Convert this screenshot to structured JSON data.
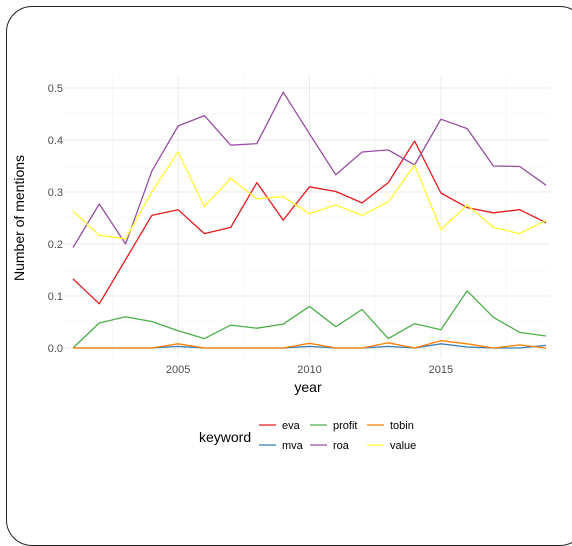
{
  "chart_data": {
    "type": "line",
    "title": "",
    "xlabel": "year",
    "ylabel": "Number of mentions",
    "xlim": [
      2001,
      2019
    ],
    "ylim": [
      0,
      0.5
    ],
    "x_ticks": [
      "2005",
      "2010",
      "2015"
    ],
    "y_ticks": [
      "0.0",
      "0.1",
      "0.2",
      "0.3",
      "0.4",
      "0.5"
    ],
    "grid": true,
    "legend_title": "keyword",
    "legend_position": "bottom",
    "x": [
      2001,
      2002,
      2003,
      2004,
      2005,
      2006,
      2007,
      2008,
      2009,
      2010,
      2011,
      2012,
      2013,
      2014,
      2015,
      2016,
      2017,
      2018,
      2019
    ],
    "series": [
      {
        "name": "eva",
        "color": "#E41A1C",
        "values": [
          0.133,
          0.085,
          0.17,
          0.255,
          0.266,
          0.22,
          0.232,
          0.318,
          0.246,
          0.31,
          0.301,
          0.279,
          0.318,
          0.398,
          0.298,
          0.27,
          0.26,
          0.266,
          0.241
        ]
      },
      {
        "name": "mva",
        "color": "#377EB8",
        "values": [
          0.0,
          0.0,
          0.0,
          0.0,
          0.003,
          0.0,
          0.0,
          0.0,
          0.0,
          0.003,
          0.0,
          0.0,
          0.003,
          0.0,
          0.008,
          0.002,
          0.0,
          0.0,
          0.005
        ]
      },
      {
        "name": "profit",
        "color": "#4DAF4A",
        "values": [
          0.0,
          0.048,
          0.06,
          0.051,
          0.033,
          0.018,
          0.044,
          0.038,
          0.046,
          0.08,
          0.041,
          0.074,
          0.018,
          0.047,
          0.035,
          0.11,
          0.059,
          0.03,
          0.023
        ]
      },
      {
        "name": "roa",
        "color": "#984EA3",
        "values": [
          0.193,
          0.277,
          0.2,
          0.34,
          0.427,
          0.447,
          0.39,
          0.393,
          0.492,
          0.412,
          0.333,
          0.377,
          0.381,
          0.352,
          0.44,
          0.422,
          0.35,
          0.349,
          0.313
        ]
      },
      {
        "name": "tobin",
        "color": "#FF7F00",
        "values": [
          0.0,
          0.0,
          0.0,
          0.0,
          0.008,
          0.0,
          0.0,
          0.0,
          0.0,
          0.009,
          0.0,
          0.0,
          0.01,
          0.0,
          0.014,
          0.008,
          0.0,
          0.006,
          0.0
        ]
      },
      {
        "name": "value",
        "color": "#FFFF33",
        "values": [
          0.263,
          0.217,
          0.21,
          0.3,
          0.377,
          0.272,
          0.326,
          0.287,
          0.291,
          0.258,
          0.275,
          0.255,
          0.281,
          0.352,
          0.228,
          0.275,
          0.232,
          0.22,
          0.245
        ]
      }
    ]
  }
}
